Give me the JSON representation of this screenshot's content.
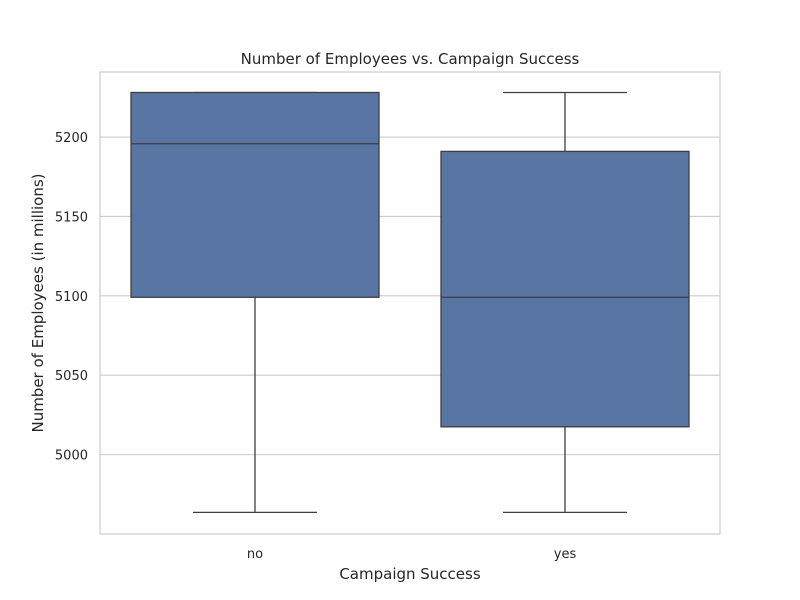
{
  "chart_data": {
    "type": "box",
    "title": "Number of Employees vs. Campaign Success",
    "xlabel": "Campaign Success",
    "ylabel": "Number of Employees (in millions)",
    "categories": [
      "no",
      "yes"
    ],
    "boxes": [
      {
        "category": "no",
        "whisker_low": 4963.6,
        "q1": 5099.1,
        "median": 5195.8,
        "q3": 5228.1,
        "whisker_high": 5228.1
      },
      {
        "category": "yes",
        "whisker_low": 4963.6,
        "q1": 5017.5,
        "median": 5099.1,
        "q3": 5191.0,
        "whisker_high": 5228.1
      }
    ],
    "ylim": [
      4950,
      5241
    ],
    "yticks": [
      5000,
      5050,
      5100,
      5150,
      5200
    ],
    "grid": true,
    "colors": {
      "box_fill": "#5875a4",
      "line": "#3f3f3f",
      "grid": "#cccccc",
      "frame": "#cccccc"
    }
  }
}
